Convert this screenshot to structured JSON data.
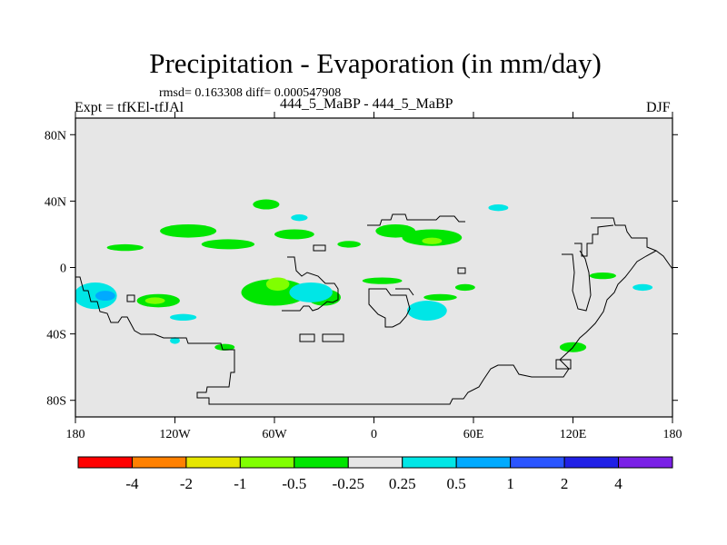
{
  "header": {
    "title": "Precipitation - Evaporation (in mm/day)",
    "stats": "rmsd= 0.163308 diff= 0.000547908",
    "left_label": "Expt = tfKEl-tfJAl",
    "center_label": "444_5_MaBP - 444_5_MaBP",
    "right_label": "DJF"
  },
  "chart_data": {
    "type": "heatmap",
    "title": "Precipitation - Evaporation (in mm/day)",
    "projection": "cylindrical equidistant",
    "x_domain": [
      -180,
      180
    ],
    "y_domain": [
      -90,
      90
    ],
    "x_ticks": [
      {
        "value": -180,
        "label": "180"
      },
      {
        "value": -120,
        "label": "120W"
      },
      {
        "value": -60,
        "label": "60W"
      },
      {
        "value": 0,
        "label": "0"
      },
      {
        "value": 60,
        "label": "60E"
      },
      {
        "value": 120,
        "label": "120E"
      },
      {
        "value": 180,
        "label": "180"
      }
    ],
    "y_ticks": [
      {
        "value": 80,
        "label": "80N"
      },
      {
        "value": 40,
        "label": "40N"
      },
      {
        "value": 0,
        "label": "0"
      },
      {
        "value": -40,
        "label": "40S"
      },
      {
        "value": -80,
        "label": "80S"
      }
    ],
    "background_color": "#e6e6e6",
    "colorbar": {
      "bins": [
        "#ff0000",
        "#ff8000",
        "#e6e600",
        "#80ff00",
        "#00e600",
        "#e6e6e6",
        "#00e6e6",
        "#00aaff",
        "#2a55ff",
        "#2020e6",
        "#7a20e6"
      ],
      "boundaries": [
        "-4",
        "-2",
        "-1",
        "-0.5",
        "-0.25",
        "0.25",
        "0.5",
        "1",
        "2",
        "4"
      ]
    },
    "regions": [
      {
        "level": "-0.25",
        "color": "#00e600",
        "lon": -150,
        "lat": 12,
        "dlon": 11,
        "dlat": 2
      },
      {
        "level": "-0.25",
        "color": "#00e600",
        "lon": -112,
        "lat": 22,
        "dlon": 17,
        "dlat": 4
      },
      {
        "level": "-0.25",
        "color": "#00e600",
        "lon": -88,
        "lat": 14,
        "dlon": 16,
        "dlat": 3
      },
      {
        "level": "-0.25",
        "color": "#00e600",
        "lon": -65,
        "lat": 38,
        "dlon": 8,
        "dlat": 3
      },
      {
        "level": "-0.25",
        "color": "#00e600",
        "lon": -48,
        "lat": 20,
        "dlon": 12,
        "dlat": 3
      },
      {
        "level": "-0.25",
        "color": "#00e600",
        "lon": -15,
        "lat": 14,
        "dlon": 7,
        "dlat": 2
      },
      {
        "level": "-0.25",
        "color": "#00e600",
        "lon": 13,
        "lat": 22,
        "dlon": 12,
        "dlat": 4
      },
      {
        "level": "-0.25",
        "color": "#00e600",
        "lon": 35,
        "lat": 18,
        "dlon": 18,
        "dlat": 5
      },
      {
        "level": "-0.5",
        "color": "#80ff00",
        "lon": 35,
        "lat": 16,
        "dlon": 6,
        "dlat": 2
      },
      {
        "level": "-0.25",
        "color": "#00e600",
        "lon": -130,
        "lat": -20,
        "dlon": 13,
        "dlat": 4
      },
      {
        "level": "-0.5",
        "color": "#80ff00",
        "lon": -132,
        "lat": -20,
        "dlon": 6,
        "dlat": 2
      },
      {
        "level": "-0.25",
        "color": "#00e600",
        "lon": -60,
        "lat": -15,
        "dlon": 20,
        "dlat": 8
      },
      {
        "level": "-0.5",
        "color": "#80ff00",
        "lon": -58,
        "lat": -10,
        "dlon": 7,
        "dlat": 4
      },
      {
        "level": "-0.25",
        "color": "#00e600",
        "lon": -30,
        "lat": -18,
        "dlon": 10,
        "dlat": 5
      },
      {
        "level": "-0.25",
        "color": "#00e600",
        "lon": 5,
        "lat": -8,
        "dlon": 12,
        "dlat": 2
      },
      {
        "level": "-0.25",
        "color": "#00e600",
        "lon": 40,
        "lat": -18,
        "dlon": 10,
        "dlat": 2
      },
      {
        "level": "-0.25",
        "color": "#00e600",
        "lon": 55,
        "lat": -12,
        "dlon": 6,
        "dlat": 2
      },
      {
        "level": "-0.25",
        "color": "#00e600",
        "lon": 120,
        "lat": -48,
        "dlon": 8,
        "dlat": 3
      },
      {
        "level": "-0.25",
        "color": "#00e600",
        "lon": -90,
        "lat": -48,
        "dlon": 6,
        "dlat": 2
      },
      {
        "level": "-0.25",
        "color": "#00e600",
        "lon": 138,
        "lat": -5,
        "dlon": 8,
        "dlat": 2
      },
      {
        "level": "0.25",
        "color": "#00e6e6",
        "lon": -168,
        "lat": -17,
        "dlon": 13,
        "dlat": 8
      },
      {
        "level": "0.5",
        "color": "#00aaff",
        "lon": -162,
        "lat": -17,
        "dlon": 6,
        "dlat": 3
      },
      {
        "level": "0.25",
        "color": "#00e6e6",
        "lon": -38,
        "lat": -15,
        "dlon": 13,
        "dlat": 6
      },
      {
        "level": "0.25",
        "color": "#00e6e6",
        "lon": 32,
        "lat": -26,
        "dlon": 12,
        "dlat": 6
      },
      {
        "level": "0.25",
        "color": "#00e6e6",
        "lon": 75,
        "lat": 36,
        "dlon": 6,
        "dlat": 2
      },
      {
        "level": "0.25",
        "color": "#00e6e6",
        "lon": -45,
        "lat": 30,
        "dlon": 5,
        "dlat": 2
      },
      {
        "level": "0.25",
        "color": "#00e6e6",
        "lon": 162,
        "lat": -12,
        "dlon": 6,
        "dlat": 2
      },
      {
        "level": "0.25",
        "color": "#00e6e6",
        "lon": -115,
        "lat": -30,
        "dlon": 8,
        "dlat": 2
      },
      {
        "level": "0.25",
        "color": "#00e6e6",
        "lon": -120,
        "lat": -44,
        "dlon": 3,
        "dlat": 2
      }
    ]
  }
}
